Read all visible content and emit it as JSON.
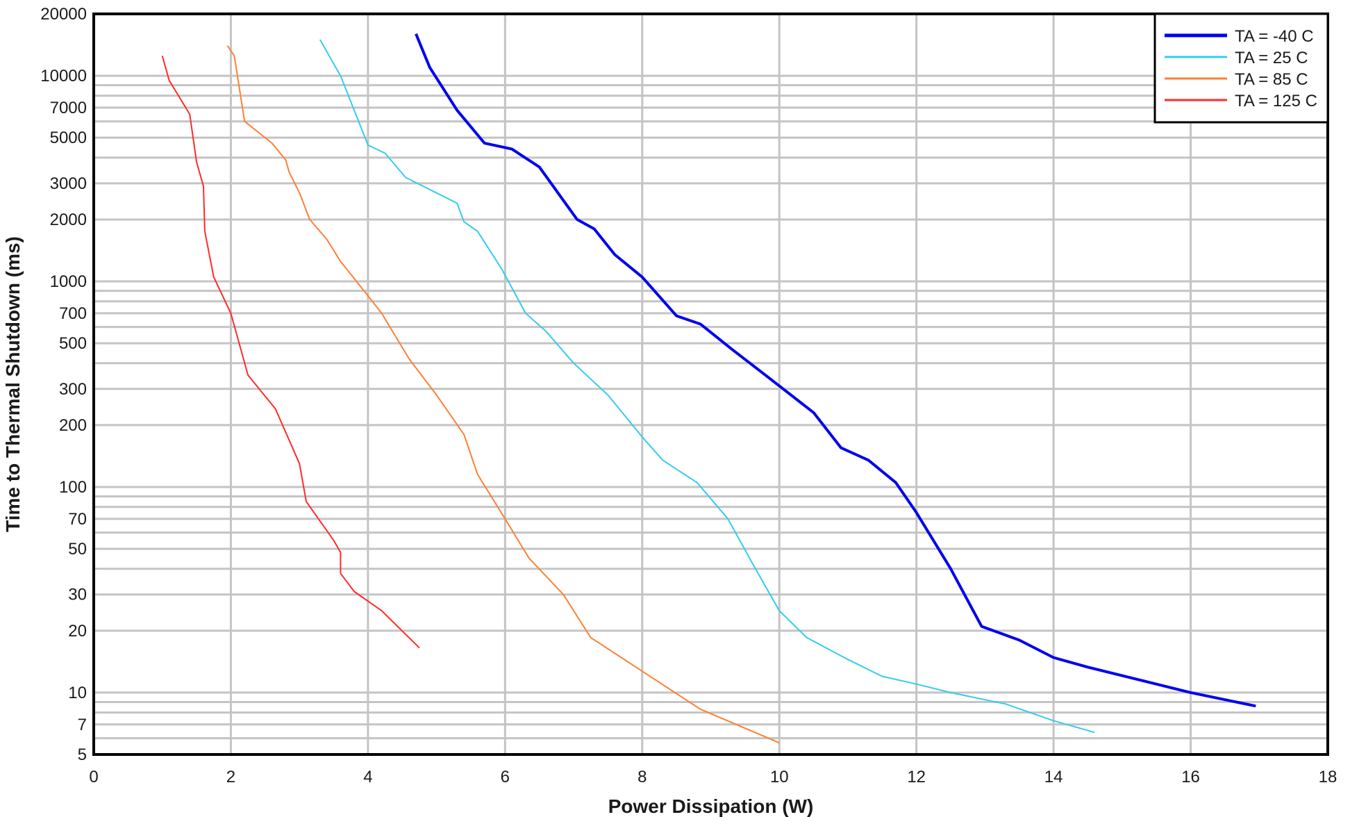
{
  "chart_data": {
    "type": "line",
    "title": "",
    "xlabel": "Power Dissipation (W)",
    "ylabel": "Time to Thermal Shutdown (ms)",
    "xlim": [
      0,
      18
    ],
    "ylim": [
      5,
      20000
    ],
    "yscale": "log",
    "grid": true,
    "legend_position": "top-right",
    "x_ticks": [
      0,
      2,
      4,
      6,
      8,
      10,
      12,
      14,
      16,
      18
    ],
    "y_ticks": [
      5,
      7,
      10,
      20,
      30,
      50,
      70,
      100,
      200,
      300,
      500,
      700,
      1000,
      2000,
      3000,
      5000,
      7000,
      10000,
      20000
    ],
    "y_gridlines": [
      6,
      7,
      8,
      9,
      10,
      20,
      30,
      40,
      50,
      60,
      70,
      80,
      90,
      100,
      200,
      300,
      400,
      500,
      600,
      700,
      800,
      900,
      1000,
      2000,
      3000,
      4000,
      5000,
      6000,
      7000,
      8000,
      9000,
      10000
    ],
    "series": [
      {
        "name": "TA = -40 C",
        "color": "#0000ee",
        "width": 4,
        "x": [
          4.7,
          4.9,
          5.3,
          5.7,
          6.1,
          6.5,
          7.05,
          7.3,
          7.6,
          8.0,
          8.5,
          8.85,
          9.3,
          9.75,
          10.5,
          10.9,
          11.3,
          11.7,
          12.0,
          12.5,
          12.95,
          13.5,
          14.0,
          14.5,
          15.5,
          16.0,
          16.95
        ],
        "y": [
          16000,
          11000,
          6800,
          4700,
          4400,
          3600,
          2000,
          1800,
          1350,
          1050,
          680,
          620,
          470,
          360,
          230,
          155,
          135,
          105,
          75,
          40,
          21,
          18,
          14.8,
          13.3,
          11,
          10,
          8.6
        ]
      },
      {
        "name": "TA = 25 C",
        "color": "#33ccee",
        "width": 2,
        "x": [
          3.3,
          3.6,
          4.0,
          4.25,
          4.55,
          5.3,
          5.4,
          5.6,
          5.95,
          6.3,
          6.6,
          7.0,
          7.5,
          8.0,
          8.3,
          8.8,
          9.25,
          9.6,
          10.0,
          10.4,
          11.0,
          11.5,
          12.0,
          12.5,
          13.3,
          14.0,
          14.6
        ],
        "y": [
          15000,
          10000,
          4600,
          4200,
          3200,
          2400,
          1950,
          1750,
          1150,
          700,
          570,
          400,
          280,
          175,
          135,
          105,
          70,
          43,
          25,
          18.5,
          14.5,
          12,
          11,
          10,
          8.8,
          7.3,
          6.4
        ]
      },
      {
        "name": "TA = 85 C",
        "color": "#ff7f33",
        "width": 2,
        "x": [
          1.95,
          2.05,
          2.2,
          2.6,
          2.8,
          2.85,
          3.0,
          3.15,
          3.4,
          3.6,
          4.0,
          4.2,
          4.6,
          5.0,
          5.4,
          5.6,
          6.0,
          6.35,
          6.85,
          7.25,
          8.0,
          8.85,
          10.0
        ],
        "y": [
          14000,
          12500,
          6000,
          4700,
          3900,
          3400,
          2700,
          2000,
          1600,
          1250,
          850,
          700,
          420,
          280,
          180,
          115,
          70,
          45,
          30,
          18.5,
          12.7,
          8.3,
          5.7
        ]
      },
      {
        "name": "TA = 125 C",
        "color": "#ff2a2a",
        "width": 2,
        "x": [
          1.0,
          1.1,
          1.4,
          1.5,
          1.6,
          1.62,
          1.75,
          2.0,
          2.25,
          2.65,
          3.0,
          3.1,
          3.5,
          3.6,
          3.6,
          3.8,
          4.2,
          4.75
        ],
        "y": [
          12500,
          9500,
          6500,
          3800,
          2900,
          1750,
          1050,
          700,
          350,
          240,
          130,
          85,
          55,
          48,
          38,
          31,
          25,
          16.5
        ]
      }
    ]
  }
}
